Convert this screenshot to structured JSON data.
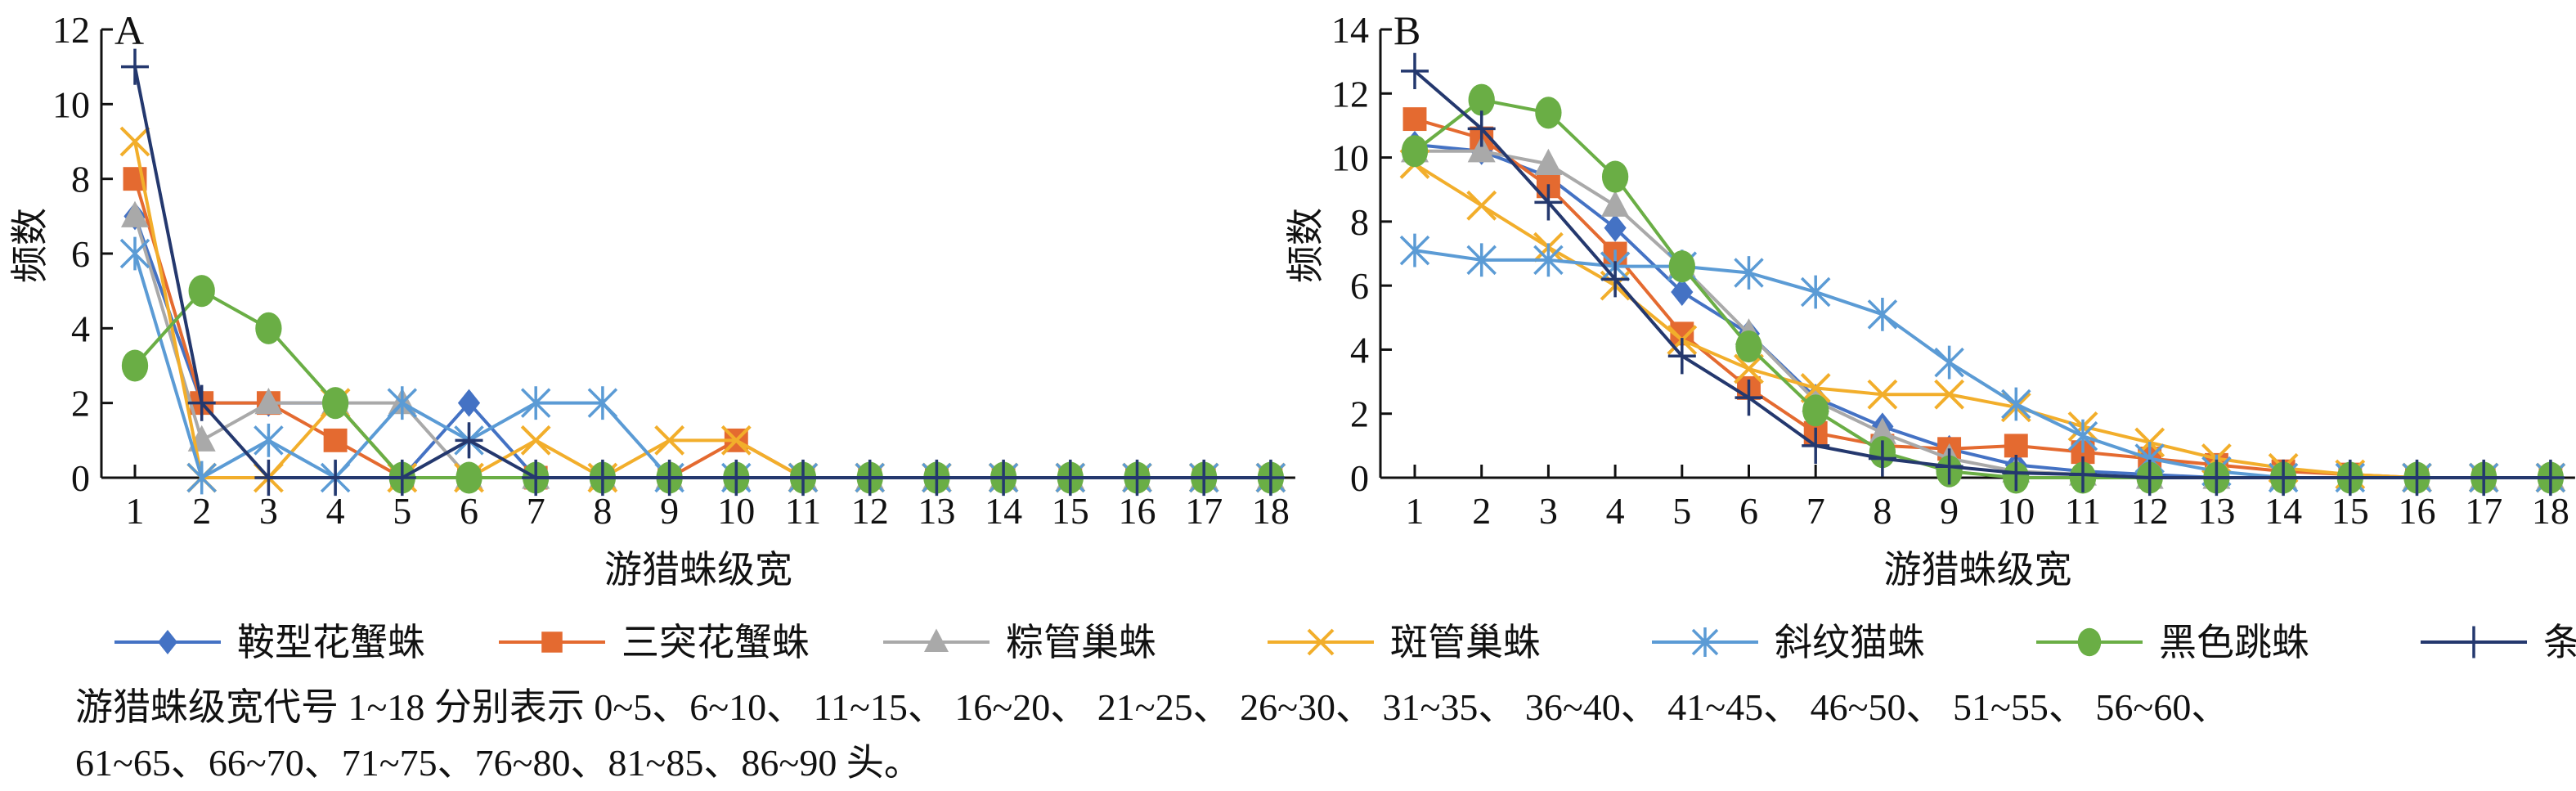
{
  "chart_data": [
    {
      "type": "line",
      "panel_label": "A",
      "xlabel": "游猎蛛级宽",
      "ylabel": "频数",
      "ylim": [
        0,
        12
      ],
      "yticks": [
        0,
        2,
        4,
        6,
        8,
        10,
        12
      ],
      "categories": [
        1,
        2,
        3,
        4,
        5,
        6,
        7,
        8,
        9,
        10,
        11,
        12,
        13,
        14,
        15,
        16,
        17,
        18
      ],
      "grid": false,
      "series": [
        {
          "name": "鞍型花蟹蛛",
          "values": [
            7,
            2,
            2,
            2,
            0,
            2,
            0,
            0,
            0,
            0,
            0,
            0,
            0,
            0,
            0,
            0,
            0,
            0
          ]
        },
        {
          "name": "三突花蟹蛛",
          "values": [
            8,
            2,
            2,
            1,
            0,
            0,
            0,
            0,
            0,
            1,
            0,
            0,
            0,
            0,
            0,
            0,
            0,
            0
          ]
        },
        {
          "name": "粽管巢蛛",
          "values": [
            7,
            1,
            2,
            2,
            2,
            0,
            0,
            0,
            0,
            0,
            0,
            0,
            0,
            0,
            0,
            0,
            0,
            0
          ]
        },
        {
          "name": "斑管巢蛛",
          "values": [
            9,
            0,
            0,
            2,
            0,
            0,
            1,
            0,
            1,
            1,
            0,
            0,
            0,
            0,
            0,
            0,
            0,
            0
          ]
        },
        {
          "name": "斜纹猫蛛",
          "values": [
            6,
            0,
            1,
            0,
            2,
            1,
            2,
            2,
            0,
            0,
            0,
            0,
            0,
            0,
            0,
            0,
            0,
            0
          ]
        },
        {
          "name": "黑色跳蛛",
          "values": [
            3,
            5,
            4,
            2,
            0,
            0,
            0,
            0,
            0,
            0,
            0,
            0,
            0,
            0,
            0,
            0,
            0,
            0
          ]
        },
        {
          "name": "条纹蝇虎",
          "values": [
            11,
            2,
            0,
            0,
            0,
            1,
            0,
            0,
            0,
            0,
            0,
            0,
            0,
            0,
            0,
            0,
            0,
            0
          ]
        }
      ]
    },
    {
      "type": "line",
      "panel_label": "B",
      "xlabel": "游猎蛛级宽",
      "ylabel": "频数",
      "ylim": [
        0,
        14
      ],
      "yticks": [
        0,
        2,
        4,
        6,
        8,
        10,
        12,
        14
      ],
      "categories": [
        1,
        2,
        3,
        4,
        5,
        6,
        7,
        8,
        9,
        10,
        11,
        12,
        13,
        14,
        15,
        16,
        17,
        18
      ],
      "grid": false,
      "series": [
        {
          "name": "鞍型花蟹蛛",
          "values": [
            10.4,
            10.2,
            9.4,
            7.8,
            5.8,
            4.5,
            2.5,
            1.6,
            0.9,
            0.4,
            0.2,
            0.1,
            0,
            0,
            0,
            0,
            0,
            0
          ]
        },
        {
          "name": "三突花蟹蛛",
          "values": [
            11.2,
            10.6,
            9.1,
            7.0,
            4.5,
            2.8,
            1.4,
            1.0,
            0.9,
            1.0,
            0.8,
            0.6,
            0.4,
            0.2,
            0.1,
            0,
            0,
            0
          ]
        },
        {
          "name": "粽管巢蛛",
          "values": [
            10.2,
            10.2,
            9.8,
            8.5,
            6.6,
            4.5,
            2.4,
            1.4,
            0.6,
            0.2,
            0.1,
            0,
            0,
            0,
            0,
            0,
            0,
            0
          ]
        },
        {
          "name": "斑管巢蛛",
          "values": [
            9.8,
            8.5,
            7.2,
            6.0,
            4.3,
            3.4,
            2.8,
            2.6,
            2.6,
            2.2,
            1.6,
            1.1,
            0.6,
            0.3,
            0.1,
            0,
            0,
            0
          ]
        },
        {
          "name": "斜纹猫蛛",
          "values": [
            7.1,
            6.8,
            6.8,
            6.6,
            6.6,
            6.4,
            5.8,
            5.1,
            3.6,
            2.3,
            1.3,
            0.6,
            0.2,
            0,
            0,
            0,
            0,
            0
          ]
        },
        {
          "name": "黑色跳蛛",
          "values": [
            10.2,
            11.8,
            11.4,
            9.4,
            6.6,
            4.1,
            2.1,
            0.8,
            0.2,
            0,
            0,
            0,
            0,
            0,
            0,
            0,
            0,
            0
          ]
        },
        {
          "name": "条纹蝇虎",
          "values": [
            12.7,
            10.9,
            8.6,
            6.2,
            3.8,
            2.5,
            1.0,
            0.6,
            0.35,
            0.15,
            0.1,
            0,
            0,
            0,
            0,
            0,
            0,
            0
          ]
        }
      ]
    }
  ],
  "legend": {
    "placement": "bottom",
    "items": [
      {
        "name": "鞍型花蟹蛛",
        "color": "#4472C4",
        "marker": "diamond"
      },
      {
        "name": "三突花蟹蛛",
        "color": "#E46A30",
        "marker": "square"
      },
      {
        "name": "粽管巢蛛",
        "color": "#A9A9A9",
        "marker": "triangle"
      },
      {
        "name": "斑管巢蛛",
        "color": "#F2AE2B",
        "marker": "x"
      },
      {
        "name": "斜纹猫蛛",
        "color": "#5B9BD5",
        "marker": "asterisk"
      },
      {
        "name": "黑色跳蛛",
        "color": "#6AAE45",
        "marker": "circle"
      },
      {
        "name": "条纹蝇虎",
        "color": "#24386E",
        "marker": "plus"
      }
    ]
  },
  "footnote": {
    "line1": "游猎蛛级宽代号 1~18 分别表示 0~5、6~10、 11~15、 16~20、 21~25、 26~30、 31~35、 36~40、 41~45、 46~50、 51~55、 56~60、",
    "line2": "61~65、66~70、71~75、76~80、81~85、86~90 头。"
  }
}
